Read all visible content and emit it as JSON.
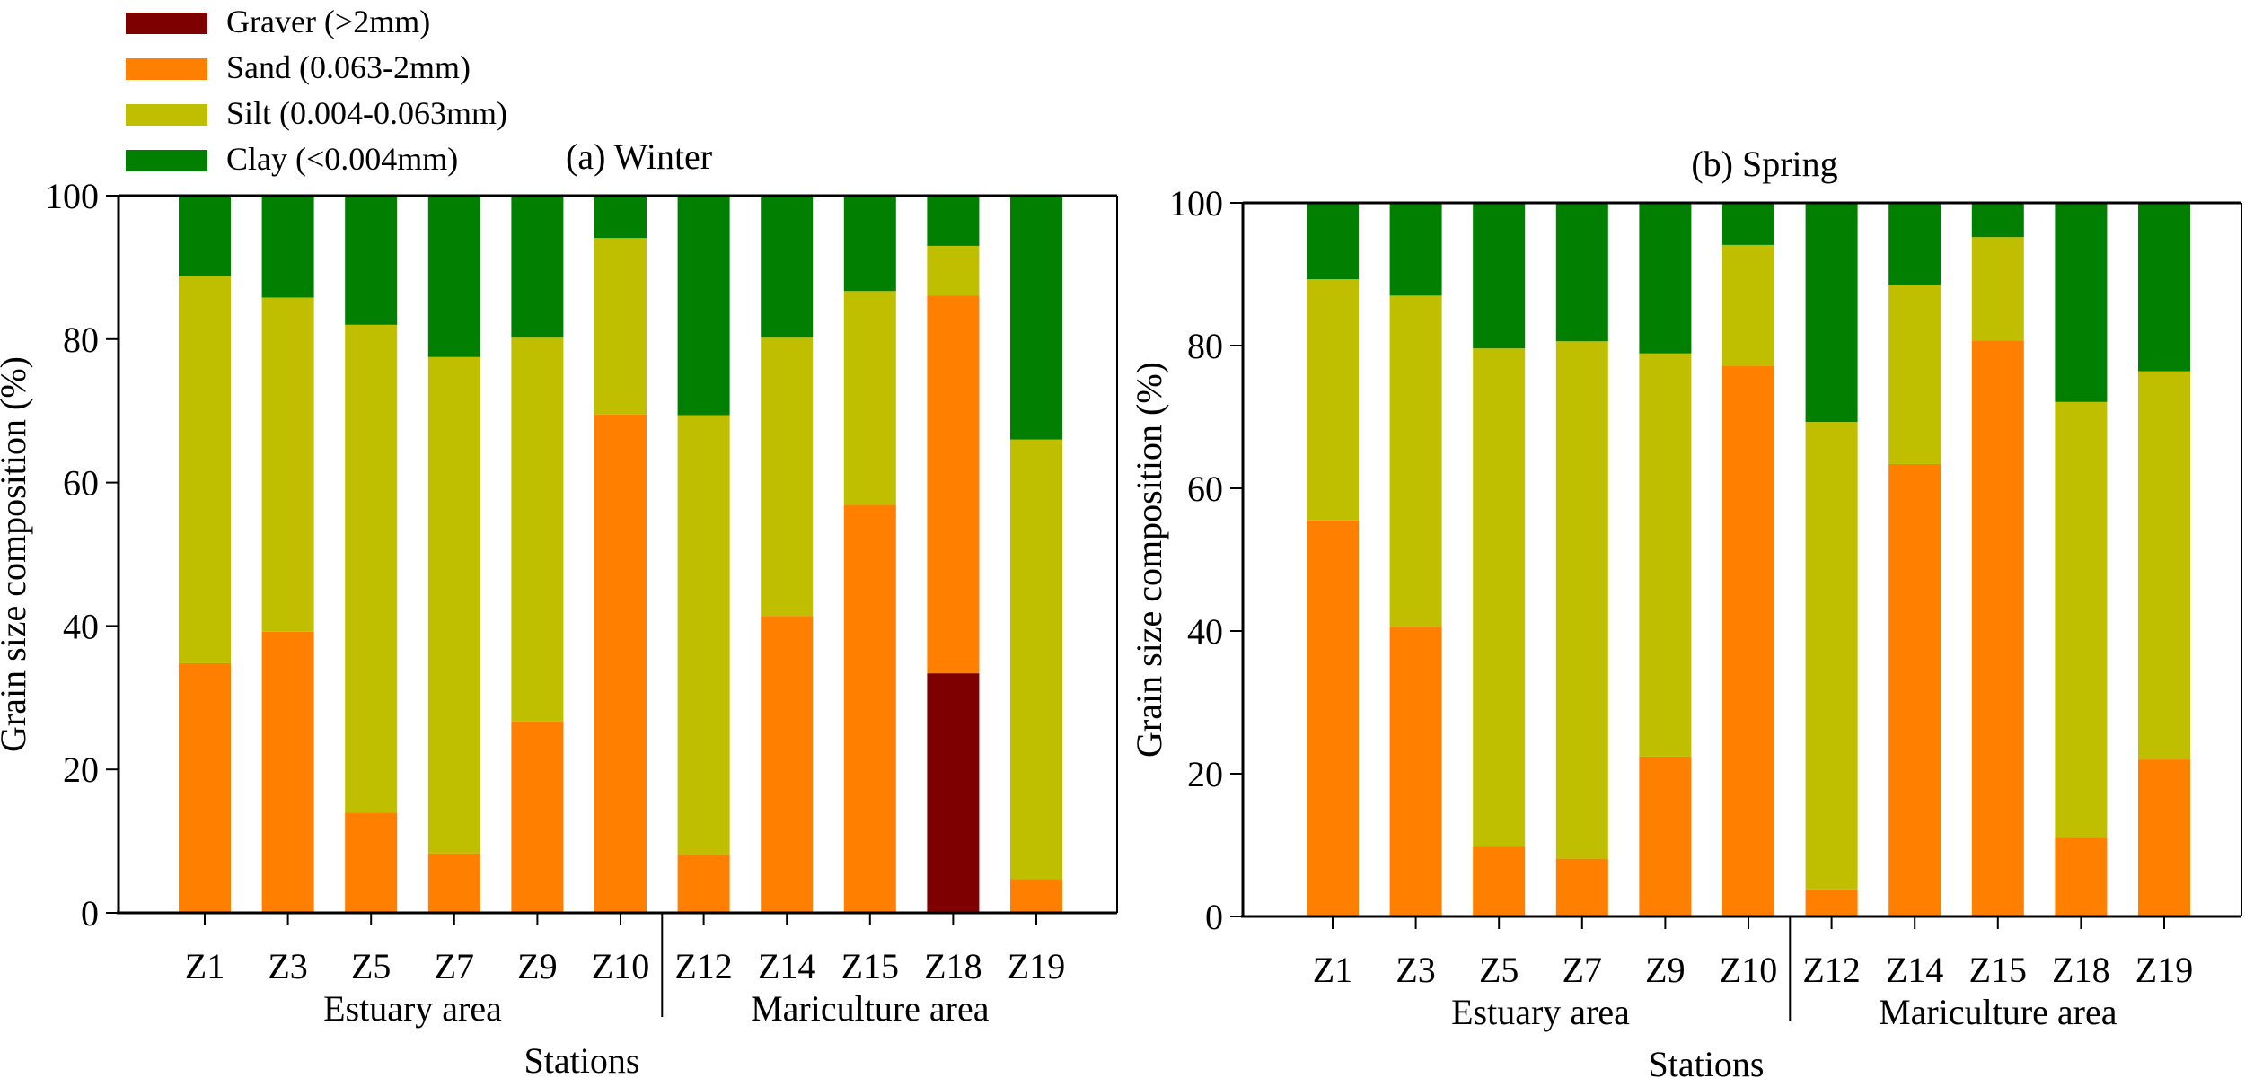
{
  "legend": [
    {
      "key": "gravel",
      "label": "Graver  (>2mm)",
      "color": "#7f0000"
    },
    {
      "key": "sand",
      "label": "Sand  (0.063-2mm)",
      "color": "#ff8000"
    },
    {
      "key": "silt",
      "label": "Silt  (0.004-0.063mm)",
      "color": "#bfbf00"
    },
    {
      "key": "clay",
      "label": "Clay  (<0.004mm)",
      "color": "#007f00"
    }
  ],
  "chart_data": [
    {
      "type": "bar",
      "stacked": true,
      "title": "(a) Winter",
      "xlabel": "Stations",
      "ylabel": "Grain size composition (%)",
      "ylim": [
        0,
        100
      ],
      "yticks": [
        "0",
        "20",
        "40",
        "60",
        "80",
        "100"
      ],
      "groups": [
        {
          "label": "Estuary area",
          "categories": [
            "Z1",
            "Z3",
            "Z5",
            "Z7",
            "Z9",
            "Z10"
          ]
        },
        {
          "label": "Mariculture area",
          "categories": [
            "Z12",
            "Z14",
            "Z15",
            "Z18",
            "Z19"
          ]
        }
      ],
      "categories": [
        "Z1",
        "Z3",
        "Z5",
        "Z7",
        "Z9",
        "Z10",
        "Z12",
        "Z14",
        "Z15",
        "Z18",
        "Z19"
      ],
      "series": [
        {
          "name": "Graver  (>2mm)",
          "values": [
            0,
            0,
            0,
            0,
            0,
            0,
            0,
            0,
            0,
            33.4,
            0
          ]
        },
        {
          "name": "Sand  (0.063-2mm)",
          "values": [
            34.8,
            39.2,
            14.0,
            8.3,
            26.7,
            69.5,
            8.1,
            41.4,
            56.9,
            52.7,
            4.7
          ]
        },
        {
          "name": "Silt  (0.004-0.063mm)",
          "values": [
            54.0,
            46.6,
            68.0,
            69.2,
            53.5,
            24.6,
            61.3,
            38.8,
            29.8,
            6.9,
            61.3
          ]
        },
        {
          "name": "Clay  (<0.004mm)",
          "values": [
            11.2,
            14.2,
            18.0,
            22.5,
            19.8,
            5.9,
            30.6,
            19.8,
            13.3,
            7.0,
            34.0
          ]
        }
      ]
    },
    {
      "type": "bar",
      "stacked": true,
      "title": "(b) Spring",
      "xlabel": "Stations",
      "ylabel": "Grain size composition (%)",
      "ylim": [
        0,
        100
      ],
      "yticks": [
        "0",
        "20",
        "40",
        "60",
        "80",
        "100"
      ],
      "groups": [
        {
          "label": "Estuary area",
          "categories": [
            "Z1",
            "Z3",
            "Z5",
            "Z7",
            "Z9",
            "Z10"
          ]
        },
        {
          "label": "Mariculture area",
          "categories": [
            "Z12",
            "Z14",
            "Z15",
            "Z18",
            "Z19"
          ]
        }
      ],
      "categories": [
        "Z1",
        "Z3",
        "Z5",
        "Z7",
        "Z9",
        "Z10",
        "Z12",
        "Z14",
        "Z15",
        "Z18",
        "Z19"
      ],
      "series": [
        {
          "name": "Graver  (>2mm)",
          "values": [
            0,
            0,
            0,
            0,
            0,
            0,
            0,
            0,
            0,
            0,
            0
          ]
        },
        {
          "name": "Sand  (0.063-2mm)",
          "values": [
            55.5,
            40.6,
            9.8,
            8.1,
            22.4,
            77.2,
            3.8,
            63.4,
            80.7,
            11.0,
            22.0
          ]
        },
        {
          "name": "Silt  (0.004-0.063mm)",
          "values": [
            33.8,
            46.4,
            69.8,
            72.5,
            56.5,
            16.9,
            65.5,
            25.1,
            14.5,
            61.1,
            54.4
          ]
        },
        {
          "name": "Clay  (<0.004mm)",
          "values": [
            10.7,
            13.0,
            20.4,
            19.4,
            21.1,
            5.9,
            30.7,
            11.5,
            4.8,
            27.9,
            23.6
          ]
        }
      ]
    }
  ]
}
